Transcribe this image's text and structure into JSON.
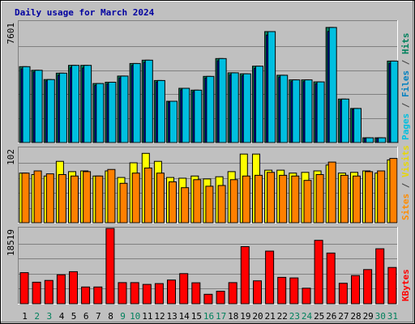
{
  "chart_data": {
    "title": "Daily usage for March 2024",
    "days": [
      "1",
      "2",
      "3",
      "4",
      "5",
      "6",
      "7",
      "8",
      "9",
      "10",
      "11",
      "12",
      "13",
      "14",
      "15",
      "16",
      "17",
      "18",
      "19",
      "20",
      "21",
      "22",
      "23",
      "24",
      "25",
      "26",
      "27",
      "28",
      "29",
      "30",
      "31"
    ],
    "weekend_days": [
      2,
      3,
      9,
      10,
      16,
      17,
      23,
      24,
      30,
      31
    ],
    "panels": [
      {
        "type": "bar",
        "max_label": "7601",
        "ymax": 7601,
        "right_labels": [
          {
            "text": "Pages",
            "color": "#00bfdf"
          },
          {
            "text": " / ",
            "color": "#404040"
          },
          {
            "text": "Files",
            "color": "#0080c0"
          },
          {
            "text": " / ",
            "color": "#404040"
          },
          {
            "text": "Hits",
            "color": "#00805c"
          }
        ],
        "series": [
          {
            "name": "Hits",
            "color": "#008060",
            "values": [
              4780,
              4550,
              3970,
              4370,
              4860,
              4860,
              3720,
              3800,
              4190,
              4980,
              5190,
              3910,
              2600,
              3420,
              3300,
              4170,
              5290,
              4390,
              4330,
              4810,
              6990,
              4240,
              3950,
              3950,
              3820,
              7250,
              2740,
              2150,
              300,
              300,
              5130
            ]
          },
          {
            "name": "Files",
            "color": "#0000c0",
            "values": [
              4640,
              4450,
              3880,
              4240,
              4710,
              4700,
              3600,
              3700,
              4070,
              4850,
              5050,
              3810,
              2550,
              3320,
              3210,
              4060,
              5150,
              4260,
              4210,
              4680,
              6770,
              4120,
              3840,
              3840,
              3700,
              7000,
              2650,
              2090,
              280,
              280,
              4990
            ]
          },
          {
            "name": "Pages",
            "color": "#00bfe0",
            "values": [
              4780,
              4550,
              3970,
              4370,
              4860,
              4860,
              3720,
              3800,
              4190,
              4980,
              5190,
              3910,
              2600,
              3420,
              3300,
              4170,
              5290,
              4390,
              4330,
              4810,
              6990,
              4240,
              3950,
              3950,
              3820,
              7250,
              2740,
              2150,
              300,
              300,
              5130
            ]
          }
        ]
      },
      {
        "type": "bar",
        "max_label": "102",
        "ymax": 102,
        "right_labels": [
          {
            "text": "Sites",
            "color": "#ff8c00"
          },
          {
            "text": " / ",
            "color": "#404040"
          },
          {
            "text": "Visits",
            "color": "#e8d800"
          }
        ],
        "series": [
          {
            "name": "Visits",
            "color": "#ffff00",
            "values": [
              68,
              66,
              64,
              84,
              70,
              71,
              64,
              71,
              62,
              82,
              95,
              84,
              62,
              61,
              64,
              60,
              63,
              70,
              94,
              94,
              72,
              72,
              68,
              69,
              71,
              79,
              68,
              69,
              71,
              68,
              86
            ]
          },
          {
            "name": "Sites",
            "color": "#ff8000",
            "values": [
              68,
              71,
              67,
              66,
              64,
              70,
              64,
              73,
              54,
              68,
              75,
              68,
              56,
              48,
              59,
              50,
              51,
              59,
              64,
              65,
              69,
              65,
              64,
              58,
              66,
              83,
              65,
              64,
              70,
              71,
              88
            ]
          }
        ]
      },
      {
        "type": "bar",
        "max_label": "18519",
        "ymax": 18519,
        "right_labels": [
          {
            "text": "KBytes",
            "color": "#ff0000"
          }
        ],
        "series": [
          {
            "name": "KBytes",
            "color": "#ff0000",
            "values": [
              7640,
              5300,
              5740,
              7130,
              7880,
              4130,
              4130,
              18519,
              5190,
              5190,
              4760,
              4950,
              5840,
              7410,
              5150,
              2330,
              3090,
              5190,
              14040,
              5630,
              12950,
              6500,
              6350,
              3820,
              15590,
              12460,
              5040,
              6920,
              8410,
              13530,
              8930
            ]
          }
        ]
      }
    ]
  }
}
